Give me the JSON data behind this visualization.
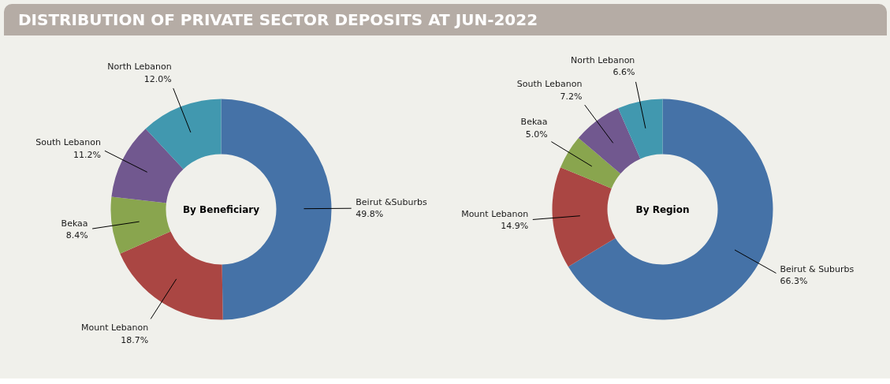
{
  "chart_data": [
    {
      "type": "donut",
      "title": "DISTRIBUTION OF PRIVATE SECTOR DEPOSITS AT JUN-2022",
      "subtitle": "By Beneficiary",
      "categories": [
        "Beirut &Suburbs",
        "Mount Lebanon",
        "Bekaa",
        "South Lebanon",
        "North Lebanon"
      ],
      "values": [
        49.8,
        18.7,
        8.4,
        11.2,
        12.0
      ],
      "value_labels": [
        "49.8%",
        "18.7%",
        "8.4%",
        "11.2%",
        "12.0%"
      ],
      "colors": [
        "#4572a7",
        "#aa4643",
        "#89a54e",
        "#71588f",
        "#4198af"
      ]
    },
    {
      "type": "donut",
      "subtitle": "By Region",
      "categories": [
        "Beirut & Suburbs",
        "Mount Lebanon",
        "Bekaa",
        "South Lebanon",
        "North Lebanon"
      ],
      "values": [
        66.3,
        14.9,
        5.0,
        7.2,
        6.6
      ],
      "value_labels": [
        "66.3%",
        "14.9%",
        "5.0%",
        "7.2%",
        "6.6%"
      ],
      "colors": [
        "#4572a7",
        "#aa4643",
        "#89a54e",
        "#71588f",
        "#4198af"
      ]
    }
  ]
}
